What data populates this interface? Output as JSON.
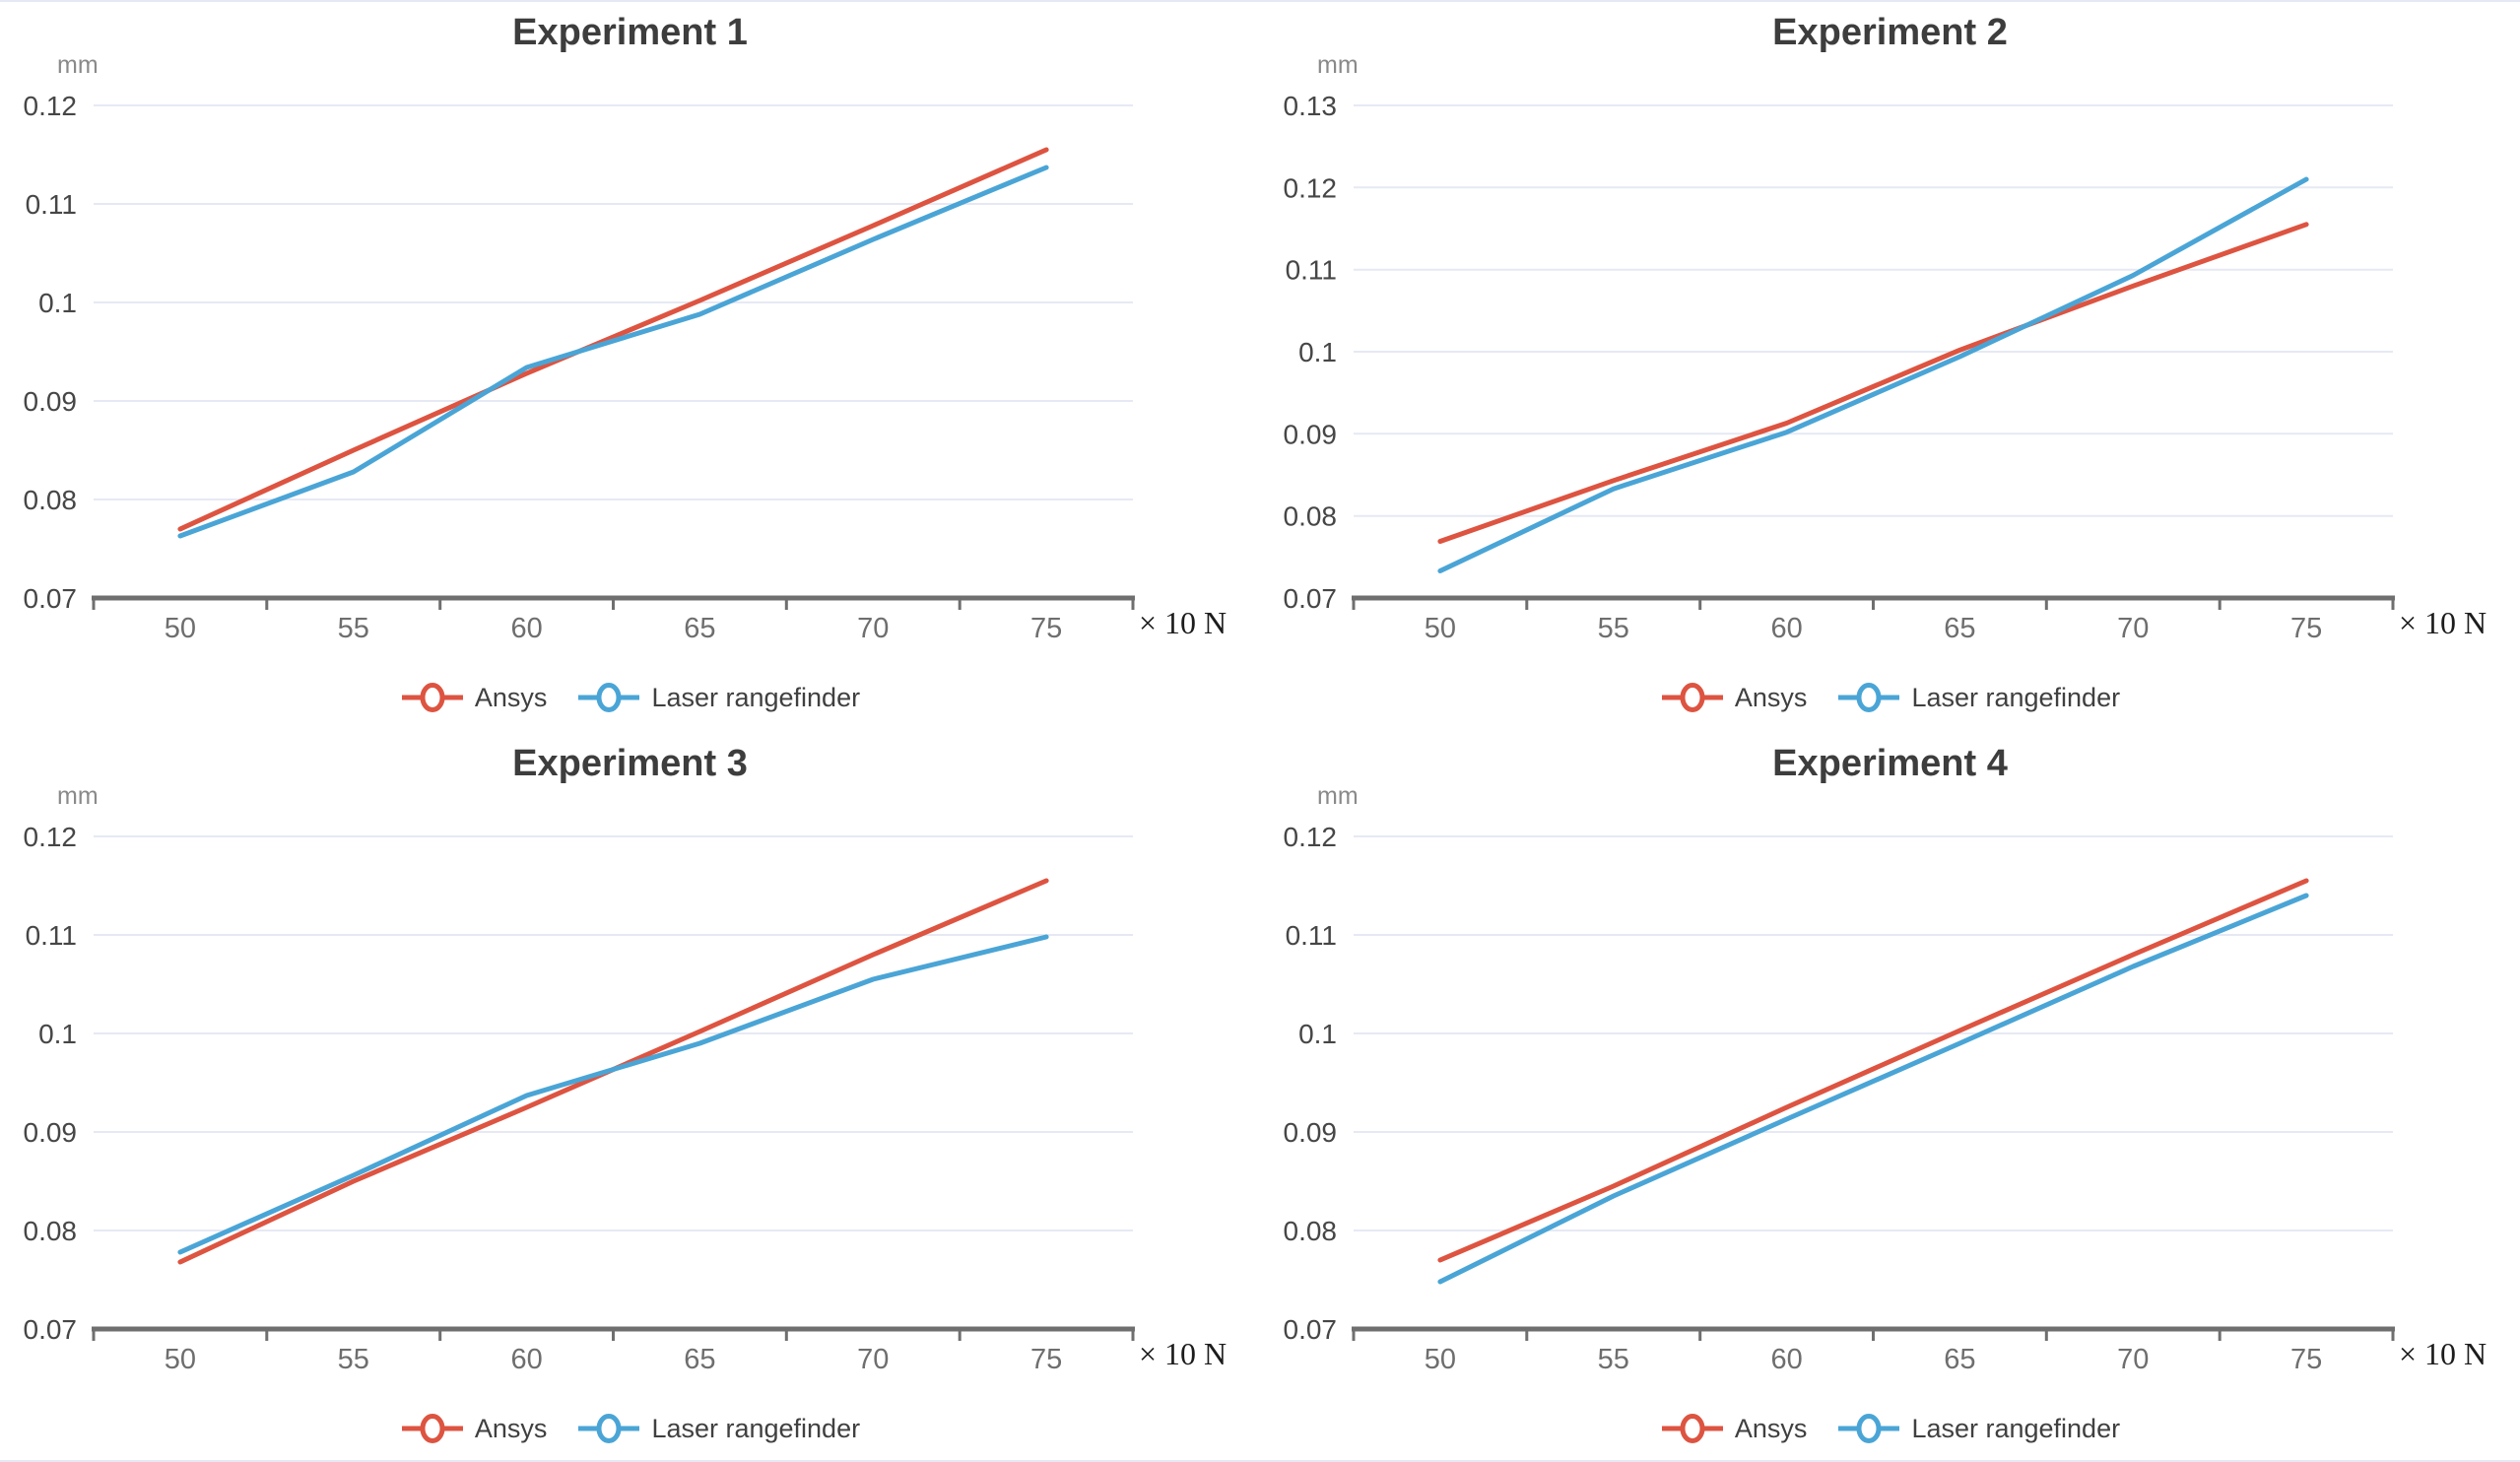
{
  "page": {
    "background": "#ffffff"
  },
  "colors": {
    "ansys": "#dd5441",
    "laser": "#4aa5d6",
    "gridline": "#e6e9f4",
    "axis": "#6f6f6f",
    "y_tick_text": "#464646",
    "x_tick_text": "#6e6e6e",
    "title_text": "#3d3d3d",
    "legend_text": "#404040"
  },
  "legend": {
    "items": [
      {
        "name": "Ansys",
        "color_key": "ansys"
      },
      {
        "name": "Laser rangefinder",
        "color_key": "laser"
      }
    ]
  },
  "chart_data": [
    {
      "type": "line",
      "title": "Experiment 1",
      "y_unit": "mm",
      "x_unit": "× 10 N",
      "xlabel": "",
      "ylabel": "mm",
      "grid": true,
      "legend_position": "bottom",
      "categories": [
        50,
        55,
        60,
        65,
        70,
        75
      ],
      "y_ticks": [
        0.07,
        0.08,
        0.09,
        0.1,
        0.11,
        0.12
      ],
      "ylim": [
        0.07,
        0.12
      ],
      "series": [
        {
          "name": "Ansys",
          "color": "#dd5441",
          "values": [
            0.077,
            0.085,
            0.0928,
            0.1002,
            0.1078,
            0.1155
          ]
        },
        {
          "name": "Laser rangefinder",
          "color": "#4aa5d6",
          "values": [
            0.0763,
            0.0828,
            0.0934,
            0.0988,
            0.1064,
            0.1137
          ]
        }
      ]
    },
    {
      "type": "line",
      "title": "Experiment 2",
      "y_unit": "mm",
      "x_unit": "× 10 N",
      "xlabel": "",
      "ylabel": "mm",
      "grid": true,
      "legend_position": "bottom",
      "categories": [
        50,
        55,
        60,
        65,
        70,
        75
      ],
      "y_ticks": [
        0.07,
        0.08,
        0.09,
        0.1,
        0.11,
        0.12,
        0.13
      ],
      "ylim": [
        0.07,
        0.13
      ],
      "series": [
        {
          "name": "Ansys",
          "color": "#dd5441",
          "values": [
            0.0769,
            0.0843,
            0.0913,
            0.1002,
            0.108,
            0.1155
          ]
        },
        {
          "name": "Laser rangefinder",
          "color": "#4aa5d6",
          "values": [
            0.0733,
            0.0833,
            0.0902,
            0.0994,
            0.1093,
            0.121
          ]
        }
      ]
    },
    {
      "type": "line",
      "title": "Experiment 3",
      "y_unit": "mm",
      "x_unit": "× 10 N",
      "xlabel": "",
      "ylabel": "mm",
      "grid": true,
      "legend_position": "bottom",
      "categories": [
        50,
        55,
        60,
        65,
        70,
        75
      ],
      "y_ticks": [
        0.07,
        0.08,
        0.09,
        0.1,
        0.11,
        0.12
      ],
      "ylim": [
        0.07,
        0.12
      ],
      "series": [
        {
          "name": "Ansys",
          "color": "#dd5441",
          "values": [
            0.0768,
            0.085,
            0.0925,
            0.1002,
            0.108,
            0.1155
          ]
        },
        {
          "name": "Laser rangefinder",
          "color": "#4aa5d6",
          "values": [
            0.0778,
            0.0856,
            0.0937,
            0.099,
            0.1055,
            0.1098
          ]
        }
      ]
    },
    {
      "type": "line",
      "title": "Experiment 4",
      "y_unit": "mm",
      "x_unit": "× 10 N",
      "xlabel": "",
      "ylabel": "mm",
      "grid": true,
      "legend_position": "bottom",
      "categories": [
        50,
        55,
        60,
        65,
        70,
        75
      ],
      "y_ticks": [
        0.07,
        0.08,
        0.09,
        0.1,
        0.11,
        0.12
      ],
      "ylim": [
        0.07,
        0.12
      ],
      "series": [
        {
          "name": "Ansys",
          "color": "#dd5441",
          "values": [
            0.077,
            0.0845,
            0.0925,
            0.1003,
            0.108,
            0.1155
          ]
        },
        {
          "name": "Laser rangefinder",
          "color": "#4aa5d6",
          "values": [
            0.0748,
            0.0835,
            0.0913,
            0.099,
            0.1068,
            0.114
          ]
        }
      ]
    }
  ]
}
